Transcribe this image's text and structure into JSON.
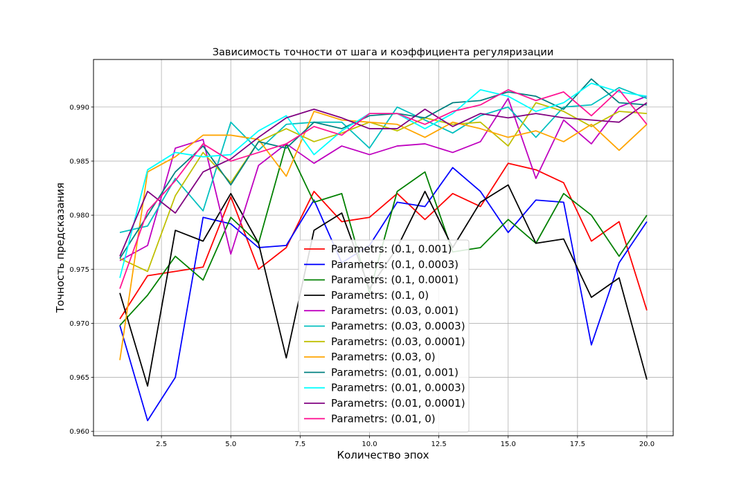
{
  "chart_data": {
    "type": "line",
    "title": "Зависимость точности от шага и коэффициента регуляризации",
    "xlabel": "Количество эпох",
    "ylabel": "Точность предсказания",
    "xlim": [
      0.05,
      20.95
    ],
    "ylim": [
      0.9596,
      0.9944
    ],
    "xticks": [
      2.5,
      5.0,
      7.5,
      10.0,
      12.5,
      15.0,
      17.5,
      20.0
    ],
    "xtick_labels": [
      "2.5",
      "5.0",
      "7.5",
      "10.0",
      "12.5",
      "15.0",
      "17.5",
      "20.0"
    ],
    "yticks": [
      0.96,
      0.965,
      0.97,
      0.975,
      0.98,
      0.985,
      0.99
    ],
    "ytick_labels": [
      "0.960",
      "0.965",
      "0.970",
      "0.975",
      "0.980",
      "0.985",
      "0.990"
    ],
    "grid": true,
    "legend_position": "center-bottom",
    "x": [
      1,
      2,
      3,
      4,
      5,
      6,
      7,
      8,
      9,
      10,
      11,
      12,
      13,
      14,
      15,
      16,
      17,
      18,
      19,
      20
    ],
    "series": [
      {
        "name": "Parametrs: (0.1, 0.001)",
        "color": "#ff0000",
        "values": [
          0.9704,
          0.9744,
          0.9748,
          0.9752,
          0.9817,
          0.975,
          0.977,
          0.9822,
          0.9794,
          0.9798,
          0.982,
          0.9796,
          0.982,
          0.9808,
          0.9848,
          0.9842,
          0.983,
          0.9776,
          0.9794,
          0.9712
        ]
      },
      {
        "name": "Parametrs: (0.1, 0.0003)",
        "color": "#0000ff",
        "values": [
          0.9698,
          0.961,
          0.965,
          0.9798,
          0.9792,
          0.977,
          0.9772,
          0.9814,
          0.9756,
          0.9772,
          0.9812,
          0.9808,
          0.9844,
          0.9822,
          0.9784,
          0.9814,
          0.9812,
          0.968,
          0.9756,
          0.9794
        ]
      },
      {
        "name": "Parametrs: (0.1, 0.0001)",
        "color": "#008000",
        "values": [
          0.9698,
          0.9726,
          0.9762,
          0.974,
          0.9798,
          0.9774,
          0.9866,
          0.9812,
          0.982,
          0.9728,
          0.9822,
          0.984,
          0.9766,
          0.977,
          0.9796,
          0.9774,
          0.982,
          0.98,
          0.9762,
          0.98
        ]
      },
      {
        "name": "Parametrs: (0.1, 0)",
        "color": "#000000",
        "values": [
          0.9728,
          0.9642,
          0.9786,
          0.9776,
          0.982,
          0.9774,
          0.9668,
          0.9786,
          0.9802,
          0.9732,
          0.977,
          0.9822,
          0.977,
          0.9812,
          0.9828,
          0.9774,
          0.9778,
          0.9724,
          0.9742,
          0.9648
        ]
      },
      {
        "name": "Parametrs: (0.03, 0.001)",
        "color": "#bf00bf",
        "values": [
          0.9758,
          0.9772,
          0.9862,
          0.987,
          0.9764,
          0.9846,
          0.9866,
          0.9848,
          0.9864,
          0.9856,
          0.9864,
          0.9866,
          0.9858,
          0.9868,
          0.9908,
          0.9834,
          0.9888,
          0.9866,
          0.99,
          0.991
        ]
      },
      {
        "name": "Parametrs: (0.03, 0.0003)",
        "color": "#00bfbf",
        "values": [
          0.9784,
          0.979,
          0.9834,
          0.9804,
          0.9886,
          0.986,
          0.9884,
          0.9886,
          0.9886,
          0.9862,
          0.99,
          0.9888,
          0.9876,
          0.9892,
          0.99,
          0.9872,
          0.99,
          0.9902,
          0.9918,
          0.9908
        ]
      },
      {
        "name": "Parametrs: (0.03, 0.0001)",
        "color": "#bfbf00",
        "values": [
          0.976,
          0.9748,
          0.9818,
          0.9858,
          0.983,
          0.9868,
          0.988,
          0.9868,
          0.9876,
          0.9886,
          0.9878,
          0.989,
          0.9884,
          0.9886,
          0.9864,
          0.9904,
          0.9896,
          0.9882,
          0.9896,
          0.9894
        ]
      },
      {
        "name": "Parametrs: (0.03, 0)",
        "color": "#ffa500",
        "values": [
          0.9666,
          0.984,
          0.9854,
          0.9874,
          0.9874,
          0.987,
          0.9836,
          0.9896,
          0.9888,
          0.9886,
          0.9884,
          0.9872,
          0.9886,
          0.988,
          0.9872,
          0.9878,
          0.9868,
          0.9884,
          0.986,
          0.9884
        ]
      },
      {
        "name": "Parametrs: (0.01, 0.001)",
        "color": "#008080",
        "values": [
          0.976,
          0.98,
          0.984,
          0.9864,
          0.9828,
          0.9868,
          0.9862,
          0.9886,
          0.988,
          0.9892,
          0.9894,
          0.989,
          0.9904,
          0.9906,
          0.9914,
          0.991,
          0.9898,
          0.9926,
          0.9904,
          0.9902
        ]
      },
      {
        "name": "Parametrs: (0.01, 0.0003)",
        "color": "#00ffff",
        "values": [
          0.9742,
          0.9842,
          0.9858,
          0.9854,
          0.9856,
          0.9878,
          0.9892,
          0.9856,
          0.9878,
          0.9894,
          0.9894,
          0.988,
          0.9894,
          0.9916,
          0.991,
          0.9896,
          0.9904,
          0.9922,
          0.9914,
          0.991
        ]
      },
      {
        "name": "Parametrs: (0.01, 0.0001)",
        "color": "#800080",
        "values": [
          0.9762,
          0.9822,
          0.9802,
          0.984,
          0.9852,
          0.9872,
          0.989,
          0.9898,
          0.989,
          0.988,
          0.988,
          0.9898,
          0.9882,
          0.9894,
          0.989,
          0.9894,
          0.989,
          0.9888,
          0.9886,
          0.9904
        ]
      },
      {
        "name": "Parametrs: (0.01, 0)",
        "color": "#ff1493",
        "values": [
          0.9732,
          0.9804,
          0.9832,
          0.9866,
          0.985,
          0.9858,
          0.9866,
          0.9882,
          0.9874,
          0.9894,
          0.9894,
          0.9884,
          0.9896,
          0.9902,
          0.9916,
          0.9906,
          0.9914,
          0.9892,
          0.9916,
          0.9884
        ]
      }
    ]
  }
}
